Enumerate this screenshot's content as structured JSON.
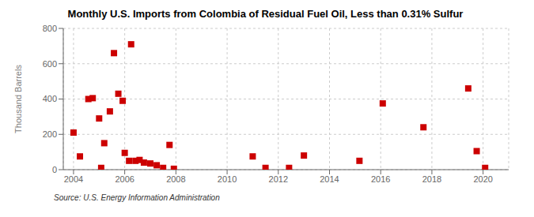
{
  "chart_data": {
    "type": "scatter",
    "title": "Monthly U.S. Imports from Colombia of Residual Fuel Oil, Less than 0.31% Sulfur",
    "ylabel": "Thousand Barrels",
    "annotations": [
      "Source: U.S. Energy Information Administration"
    ],
    "color": "#cc0000",
    "marker": "square",
    "grid": true,
    "xlim": [
      2003.6,
      2021.0
    ],
    "ylim": [
      0,
      800
    ],
    "xticks": [
      2004,
      2006,
      2008,
      2010,
      2012,
      2014,
      2016,
      2018,
      2020
    ],
    "yticks": [
      0,
      200,
      400,
      600,
      800
    ],
    "x": [
      2004.0,
      2004.25,
      2004.58,
      2004.75,
      2005.0,
      2005.08,
      2005.2,
      2005.42,
      2005.58,
      2005.75,
      2005.92,
      2006.0,
      2006.17,
      2006.25,
      2006.42,
      2006.58,
      2006.75,
      2007.0,
      2007.25,
      2007.5,
      2007.75,
      2007.92,
      2011.0,
      2011.5,
      2012.42,
      2013.0,
      2015.17,
      2016.08,
      2017.67,
      2019.42,
      2019.75,
      2020.08
    ],
    "values": [
      210,
      75,
      400,
      405,
      290,
      10,
      150,
      330,
      660,
      430,
      390,
      95,
      50,
      710,
      50,
      55,
      40,
      35,
      25,
      10,
      140,
      5,
      75,
      10,
      10,
      80,
      50,
      375,
      240,
      460,
      105,
      10
    ]
  }
}
